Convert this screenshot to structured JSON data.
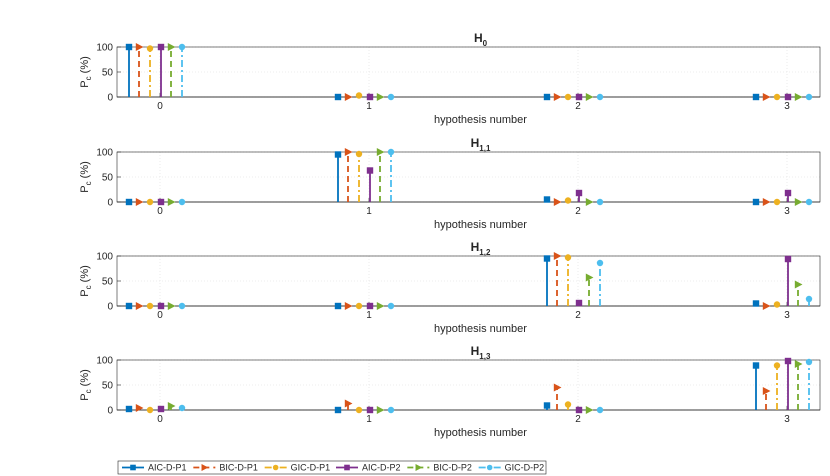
{
  "figure": {
    "legend": {
      "placement": "bottom-left",
      "entries": [
        "AIC-D-P1",
        "BIC-D-P1",
        "GIC-D-P1",
        "AIC-D-P2",
        "BIC-D-P2",
        "GIC-D-P2"
      ]
    }
  },
  "chart_data": [
    {
      "type": "stem",
      "title": "H",
      "title_sub": "0",
      "xlabel": "hypothesis number",
      "ylabel": "P",
      "ylabel_sub": "c",
      "ylabel_unit": "(%)",
      "categories": [
        "0",
        "1",
        "2",
        "3"
      ],
      "ylim": [
        0,
        100
      ],
      "yticks": [
        "0",
        "50",
        "100"
      ],
      "grid": true,
      "series": [
        {
          "name": "AIC-D-P1",
          "values": [
            100,
            0,
            0,
            0
          ]
        },
        {
          "name": "BIC-D-P1",
          "values": [
            100,
            0,
            0,
            0
          ]
        },
        {
          "name": "GIC-D-P1",
          "values": [
            97,
            3,
            0,
            0
          ]
        },
        {
          "name": "AIC-D-P2",
          "values": [
            100,
            0,
            0,
            0
          ]
        },
        {
          "name": "BIC-D-P2",
          "values": [
            100,
            0,
            0,
            0
          ]
        },
        {
          "name": "GIC-D-P2",
          "values": [
            100,
            0,
            0,
            0
          ]
        }
      ]
    },
    {
      "type": "stem",
      "title": "H",
      "title_sub": "1,1",
      "xlabel": "hypothesis number",
      "ylabel": "P",
      "ylabel_sub": "c",
      "ylabel_unit": "(%)",
      "categories": [
        "0",
        "1",
        "2",
        "3"
      ],
      "ylim": [
        0,
        100
      ],
      "yticks": [
        "0",
        "50",
        "100"
      ],
      "grid": true,
      "series": [
        {
          "name": "AIC-D-P1",
          "values": [
            0,
            95,
            5,
            0
          ]
        },
        {
          "name": "BIC-D-P1",
          "values": [
            0,
            100,
            0,
            0
          ]
        },
        {
          "name": "GIC-D-P1",
          "values": [
            0,
            96,
            3,
            0
          ]
        },
        {
          "name": "AIC-D-P2",
          "values": [
            0,
            63,
            18,
            18
          ]
        },
        {
          "name": "BIC-D-P2",
          "values": [
            0,
            100,
            0,
            0
          ]
        },
        {
          "name": "GIC-D-P2",
          "values": [
            0,
            100,
            0,
            0
          ]
        }
      ]
    },
    {
      "type": "stem",
      "title": "H",
      "title_sub": "1,2",
      "xlabel": "hypothesis number",
      "ylabel": "P",
      "ylabel_sub": "c",
      "ylabel_unit": "(%)",
      "categories": [
        "0",
        "1",
        "2",
        "3"
      ],
      "ylim": [
        0,
        100
      ],
      "yticks": [
        "0",
        "50",
        "100"
      ],
      "grid": true,
      "series": [
        {
          "name": "AIC-D-P1",
          "values": [
            0,
            0,
            95,
            5
          ]
        },
        {
          "name": "BIC-D-P1",
          "values": [
            0,
            0,
            100,
            0
          ]
        },
        {
          "name": "GIC-D-P1",
          "values": [
            0,
            0,
            97,
            3
          ]
        },
        {
          "name": "AIC-D-P2",
          "values": [
            0,
            0,
            6,
            94
          ]
        },
        {
          "name": "BIC-D-P2",
          "values": [
            0,
            0,
            57,
            43
          ]
        },
        {
          "name": "GIC-D-P2",
          "values": [
            0,
            0,
            86,
            14
          ]
        }
      ]
    },
    {
      "type": "stem",
      "title": "H",
      "title_sub": "1,3",
      "xlabel": "hypothesis number",
      "ylabel": "P",
      "ylabel_sub": "c",
      "ylabel_unit": "(%)",
      "categories": [
        "0",
        "1",
        "2",
        "3"
      ],
      "ylim": [
        0,
        100
      ],
      "yticks": [
        "0",
        "50",
        "100"
      ],
      "grid": true,
      "series": [
        {
          "name": "AIC-D-P1",
          "values": [
            2,
            0,
            9,
            89
          ]
        },
        {
          "name": "BIC-D-P1",
          "values": [
            4,
            13,
            45,
            38
          ]
        },
        {
          "name": "GIC-D-P1",
          "values": [
            0,
            0,
            11,
            89
          ]
        },
        {
          "name": "AIC-D-P2",
          "values": [
            2,
            0,
            0,
            98
          ]
        },
        {
          "name": "BIC-D-P2",
          "values": [
            8,
            0,
            0,
            92
          ]
        },
        {
          "name": "GIC-D-P2",
          "values": [
            4,
            0,
            0,
            96
          ]
        }
      ]
    }
  ],
  "series_styles": [
    {
      "color": "#0072BD",
      "marker": "square",
      "dash": ""
    },
    {
      "color": "#D95319",
      "marker": "triangle-right",
      "dash": "6,4"
    },
    {
      "color": "#EDB120",
      "marker": "circle",
      "dash": "7,3,2,3"
    },
    {
      "color": "#7E2F8E",
      "marker": "square",
      "dash": ""
    },
    {
      "color": "#77AC30",
      "marker": "triangle-right",
      "dash": "6,4"
    },
    {
      "color": "#4DBEEE",
      "marker": "circle",
      "dash": "7,3,2,3"
    }
  ]
}
